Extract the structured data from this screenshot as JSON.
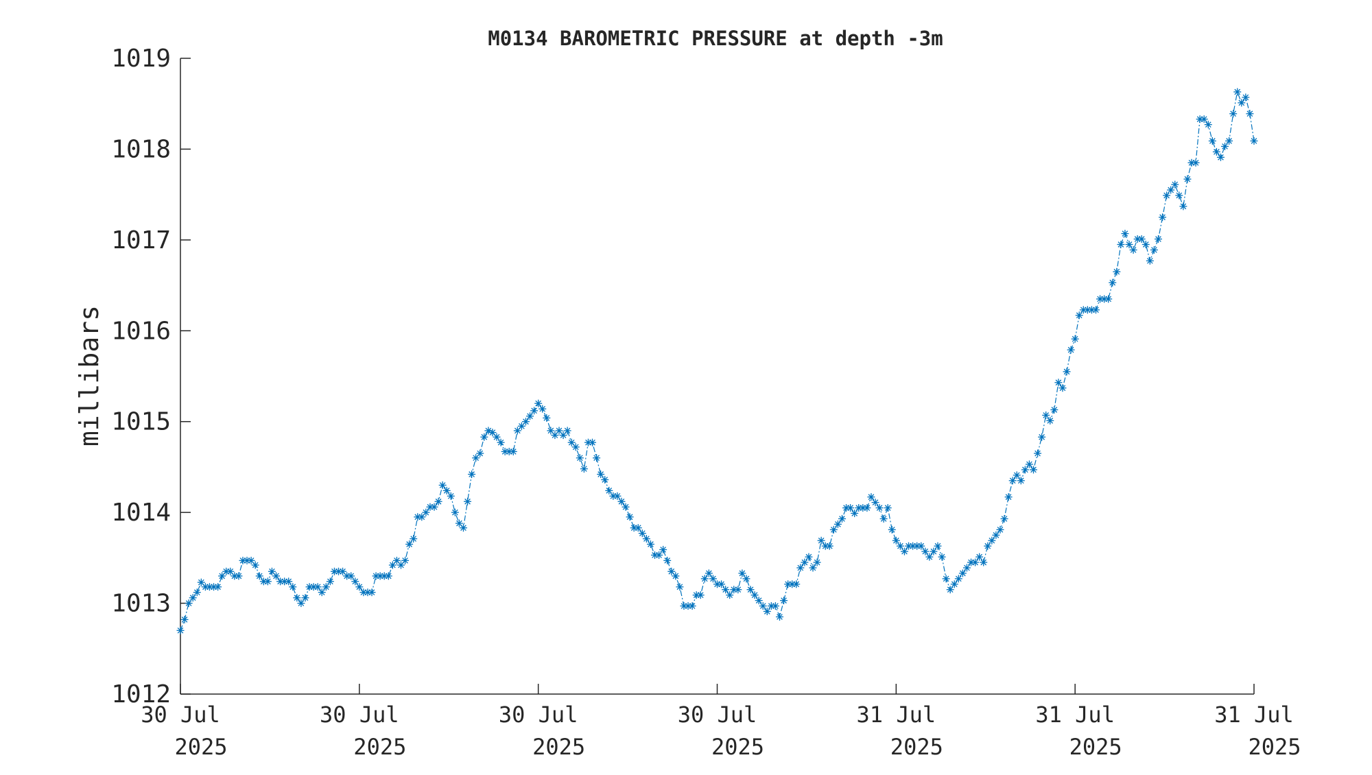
{
  "chart_data": {
    "type": "line",
    "title": "M0134 BAROMETRIC PRESSURE at depth -3m",
    "ylabel": "millibars",
    "xlabel": "",
    "ylim": [
      1012,
      1019
    ],
    "xlim": [
      0,
      12
    ],
    "x_unit": "hours since first x tick",
    "yticks": [
      "1012",
      "1013",
      "1014",
      "1015",
      "1016",
      "1017",
      "1018",
      "1019"
    ],
    "xticks": [
      {
        "line1": "30 Jul",
        "line2": "2025"
      },
      {
        "line1": "30 Jul",
        "line2": "2025"
      },
      {
        "line1": "30 Jul",
        "line2": "2025"
      },
      {
        "line1": "30 Jul",
        "line2": "2025"
      },
      {
        "line1": "31 Jul",
        "line2": "2025"
      },
      {
        "line1": "31 Jul",
        "line2": "2025"
      },
      {
        "line1": "31 Jul",
        "line2": "2025"
      }
    ],
    "grid": false,
    "legend": "none",
    "marker": "asterisk",
    "line_style": "dash-dot",
    "color": "#0072bd",
    "series": [
      {
        "y": [
          1012.7,
          1012.82,
          1013.0,
          1013.06,
          1013.12,
          1013.23,
          1013.18,
          1013.18,
          1013.18,
          1013.18,
          1013.3,
          1013.35,
          1013.35,
          1013.3,
          1013.3,
          1013.47,
          1013.47,
          1013.47,
          1013.42,
          1013.3,
          1013.24,
          1013.24,
          1013.35,
          1013.3,
          1013.24,
          1013.24,
          1013.24,
          1013.18,
          1013.06,
          1013.0,
          1013.06,
          1013.18,
          1013.18,
          1013.18,
          1013.12,
          1013.18,
          1013.24,
          1013.35,
          1013.35,
          1013.35,
          1013.3,
          1013.3,
          1013.24,
          1013.18,
          1013.12,
          1013.12,
          1013.12,
          1013.3,
          1013.3,
          1013.3,
          1013.3,
          1013.42,
          1013.47,
          1013.42,
          1013.47,
          1013.65,
          1013.71,
          1013.95,
          1013.95,
          1014.0,
          1014.06,
          1014.06,
          1014.12,
          1014.3,
          1014.24,
          1014.18,
          1014.0,
          1013.88,
          1013.83,
          1014.12,
          1014.42,
          1014.6,
          1014.65,
          1014.83,
          1014.9,
          1014.88,
          1014.83,
          1014.77,
          1014.67,
          1014.67,
          1014.67,
          1014.9,
          1014.95,
          1015.0,
          1015.06,
          1015.12,
          1015.2,
          1015.14,
          1015.04,
          1014.9,
          1014.85,
          1014.9,
          1014.85,
          1014.9,
          1014.77,
          1014.72,
          1014.6,
          1014.48,
          1014.77,
          1014.77,
          1014.6,
          1014.42,
          1014.36,
          1014.24,
          1014.18,
          1014.18,
          1014.12,
          1014.06,
          1013.95,
          1013.83,
          1013.83,
          1013.77,
          1013.71,
          1013.65,
          1013.53,
          1013.53,
          1013.59,
          1013.47,
          1013.35,
          1013.3,
          1013.18,
          1012.97,
          1012.97,
          1012.97,
          1013.09,
          1013.09,
          1013.27,
          1013.33,
          1013.27,
          1013.21,
          1013.21,
          1013.15,
          1013.09,
          1013.15,
          1013.15,
          1013.33,
          1013.27,
          1013.15,
          1013.09,
          1013.03,
          1012.97,
          1012.91,
          1012.97,
          1012.97,
          1012.85,
          1013.03,
          1013.21,
          1013.21,
          1013.21,
          1013.39,
          1013.45,
          1013.51,
          1013.39,
          1013.45,
          1013.69,
          1013.63,
          1013.63,
          1013.81,
          1013.87,
          1013.93,
          1014.05,
          1014.05,
          1013.99,
          1014.05,
          1014.05,
          1014.05,
          1014.17,
          1014.11,
          1014.05,
          1013.93,
          1014.05,
          1013.81,
          1013.69,
          1013.63,
          1013.57,
          1013.63,
          1013.63,
          1013.63,
          1013.63,
          1013.57,
          1013.51,
          1013.57,
          1013.63,
          1013.51,
          1013.27,
          1013.15,
          1013.21,
          1013.27,
          1013.33,
          1013.39,
          1013.45,
          1013.45,
          1013.51,
          1013.45,
          1013.63,
          1013.69,
          1013.75,
          1013.81,
          1013.93,
          1014.17,
          1014.35,
          1014.41,
          1014.35,
          1014.47,
          1014.53,
          1014.47,
          1014.65,
          1014.83,
          1015.07,
          1015.01,
          1015.13,
          1015.43,
          1015.37,
          1015.55,
          1015.79,
          1015.91,
          1016.17,
          1016.23,
          1016.23,
          1016.23,
          1016.23,
          1016.35,
          1016.35,
          1016.35,
          1016.53,
          1016.65,
          1016.95,
          1017.07,
          1016.95,
          1016.89,
          1017.01,
          1017.01,
          1016.95,
          1016.77,
          1016.89,
          1017.01,
          1017.25,
          1017.49,
          1017.55,
          1017.61,
          1017.49,
          1017.37,
          1017.67,
          1017.85,
          1017.85,
          1018.33,
          1018.33,
          1018.27,
          1018.09,
          1017.97,
          1017.91,
          1018.03,
          1018.09,
          1018.39,
          1018.63,
          1018.51,
          1018.57,
          1018.39,
          1018.09
        ]
      }
    ]
  }
}
